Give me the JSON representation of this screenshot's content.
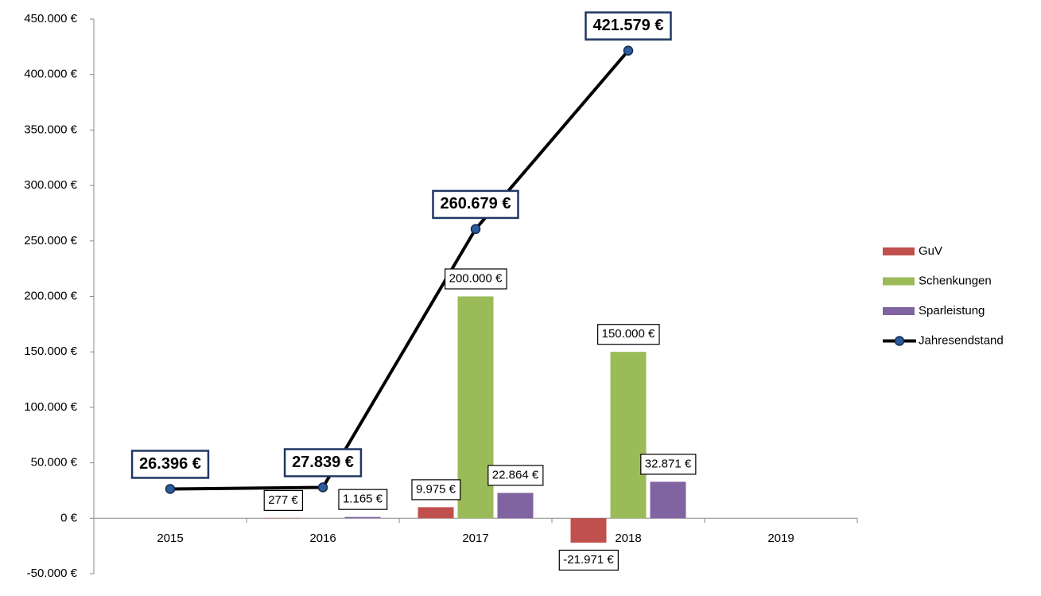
{
  "chart_data": {
    "type": "bar",
    "categories": [
      "2015",
      "2016",
      "2017",
      "2018",
      "2019"
    ],
    "ylim": [
      -50000,
      450000
    ],
    "yticks": [
      {
        "value": -50000,
        "label": "-50.000 €"
      },
      {
        "value": 0,
        "label": "0 €"
      },
      {
        "value": 50000,
        "label": "50.000 €"
      },
      {
        "value": 100000,
        "label": "100.000 €"
      },
      {
        "value": 150000,
        "label": "150.000 €"
      },
      {
        "value": 200000,
        "label": "200.000 €"
      },
      {
        "value": 250000,
        "label": "250.000 €"
      },
      {
        "value": 300000,
        "label": "300.000 €"
      },
      {
        "value": 350000,
        "label": "350.000 €"
      },
      {
        "value": 400000,
        "label": "400.000 €"
      },
      {
        "value": 450000,
        "label": "450.000 €"
      }
    ],
    "legend": "right",
    "series": [
      {
        "name": "GuV",
        "color": "#c0504d",
        "values": [
          null,
          277,
          9975,
          -21971,
          null
        ],
        "value_labels": [
          null,
          "277 €",
          "9.975 €",
          "-21.971 €",
          null
        ]
      },
      {
        "name": "Schenkungen",
        "color": "#9bbb59",
        "values": [
          null,
          null,
          200000,
          150000,
          null
        ],
        "value_labels": [
          null,
          null,
          "200.000 €",
          "150.000 €",
          null
        ]
      },
      {
        "name": "Sparleistung",
        "color": "#8064a2",
        "values": [
          null,
          1165,
          22864,
          32871,
          null
        ],
        "value_labels": [
          null,
          "1.165 €",
          "22.864 €",
          "32.871 €",
          null
        ]
      },
      {
        "name": "Jahresendstand",
        "type": "line",
        "color": "#000000",
        "marker_color": "#2c5c9c",
        "values": [
          26396,
          27839,
          260679,
          421579,
          null
        ],
        "value_labels": [
          "26.396 €",
          "27.839 €",
          "260.679 €",
          "421.579 €",
          null
        ]
      }
    ]
  }
}
